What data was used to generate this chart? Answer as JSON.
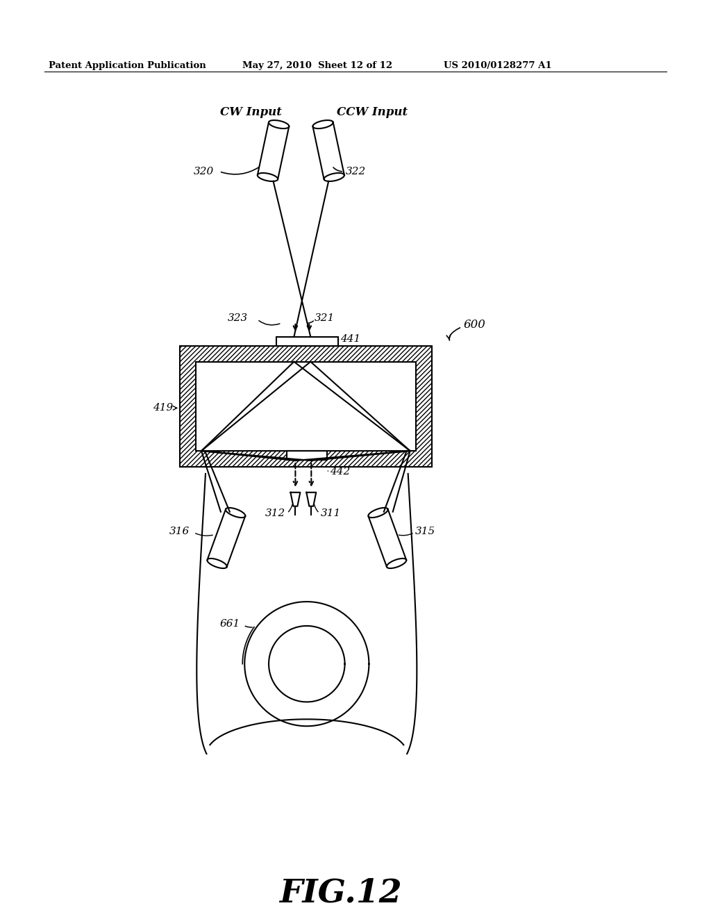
{
  "header_left": "Patent Application Publication",
  "header_mid": "May 27, 2010  Sheet 12 of 12",
  "header_right": "US 2010/0128277 A1",
  "fig_label": "FIG.12",
  "labels": {
    "CW_Input": "CW Input",
    "CCW_Input": "CCW Input",
    "320": "320",
    "322": "322",
    "323": "323",
    "321": "321",
    "441": "441",
    "419": "419",
    "442": "442",
    "316": "316",
    "315": "315",
    "312": "312",
    "311": "311",
    "661": "661",
    "600": "600"
  },
  "bg_color": "#ffffff",
  "line_color": "#000000"
}
